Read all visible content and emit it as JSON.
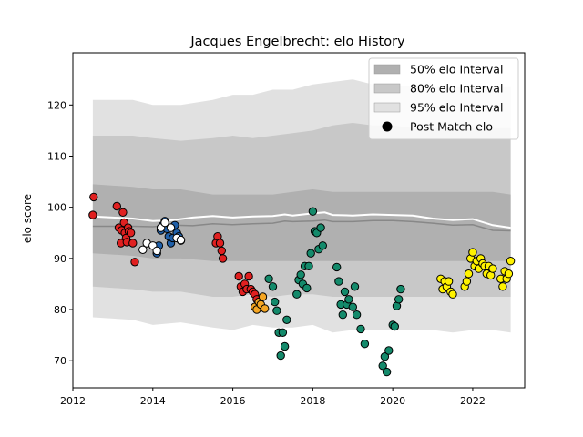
{
  "chart_data": {
    "type": "scatter",
    "title": "Jacques Engelbrecht: elo History",
    "xlabel": "",
    "ylabel": "elo score",
    "xlim": [
      2012.0,
      2023.3
    ],
    "ylim": [
      64.7,
      130.2
    ],
    "x_ticks": [
      2012,
      2014,
      2016,
      2018,
      2020,
      2022
    ],
    "x_tick_labels": [
      "2012",
      "2014",
      "2016",
      "2018",
      "2020",
      "2022"
    ],
    "y_ticks": [
      70,
      80,
      90,
      100,
      110,
      120
    ],
    "y_tick_labels": [
      "70",
      "80",
      "90",
      "100",
      "110",
      "120"
    ],
    "grid": false,
    "legend_position": "top-right",
    "legend": [
      {
        "label": "50% elo Interval",
        "kind": "band",
        "color": "#b0b0b0"
      },
      {
        "label": "80% elo Interval",
        "kind": "band",
        "color": "#c8c8c8"
      },
      {
        "label": "95% elo Interval",
        "kind": "band",
        "color": "#e1e1e1"
      },
      {
        "label": "Post Match elo",
        "kind": "marker",
        "color": "#000000"
      }
    ],
    "bands": {
      "x": [
        2012.5,
        2013.5,
        2014.0,
        2014.7,
        2015.5,
        2016.0,
        2016.5,
        2017.0,
        2017.5,
        2018.0,
        2018.5,
        2019.0,
        2019.5,
        2020.0,
        2020.5,
        2021.0,
        2021.5,
        2022.0,
        2022.5,
        2022.95
      ],
      "lo95": [
        78.5,
        78.0,
        77.0,
        77.5,
        76.5,
        76.0,
        77.0,
        76.5,
        76.5,
        77.0,
        75.5,
        76.0,
        76.0,
        76.0,
        76.0,
        76.0,
        75.5,
        76.0,
        76.0,
        75.5
      ],
      "lo80": [
        84.5,
        84.0,
        83.5,
        83.5,
        82.5,
        82.5,
        83.0,
        82.5,
        83.0,
        83.0,
        82.5,
        82.5,
        82.5,
        82.5,
        82.5,
        82.5,
        82.5,
        82.5,
        82.5,
        82.5
      ],
      "lo50": [
        91.0,
        90.5,
        90.0,
        90.0,
        89.5,
        89.5,
        89.5,
        89.5,
        89.5,
        89.5,
        89.5,
        89.5,
        89.5,
        89.5,
        89.5,
        89.5,
        89.5,
        89.5,
        89.5,
        89.5
      ],
      "hi50": [
        104.5,
        104.0,
        103.5,
        103.5,
        102.5,
        102.5,
        102.5,
        102.5,
        103.0,
        103.5,
        103.0,
        103.0,
        103.0,
        103.0,
        103.0,
        103.0,
        103.0,
        103.0,
        103.0,
        102.5
      ],
      "hi80": [
        114.0,
        114.0,
        113.5,
        113.0,
        113.5,
        114.0,
        113.5,
        114.0,
        114.5,
        115.0,
        116.0,
        116.5,
        116.0,
        116.0,
        115.5,
        115.5,
        115.5,
        115.5,
        115.5,
        115.5
      ],
      "hi95": [
        121.0,
        121.0,
        120.0,
        120.0,
        121.0,
        122.0,
        122.0,
        123.0,
        123.0,
        124.0,
        124.5,
        125.0,
        124.0,
        124.0,
        123.5,
        123.5,
        123.5,
        123.5,
        123.5,
        123.5
      ]
    },
    "mean_line": {
      "color": "#ffffff",
      "x": [
        2012.5,
        2013.0,
        2013.5,
        2014.0,
        2014.5,
        2015.0,
        2015.5,
        2016.0,
        2016.5,
        2017.0,
        2017.3,
        2017.5,
        2018.0,
        2018.3,
        2018.5,
        2019.0,
        2019.5,
        2020.0,
        2020.5,
        2021.0,
        2021.5,
        2022.0,
        2022.5,
        2022.95
      ],
      "y": [
        98.2,
        98.0,
        97.8,
        97.3,
        97.5,
        98.0,
        98.3,
        98.0,
        98.2,
        98.3,
        98.6,
        98.4,
        98.8,
        99.0,
        98.5,
        98.4,
        98.6,
        98.5,
        98.4,
        97.8,
        97.5,
        97.7,
        96.5,
        96.0
      ]
    },
    "median_line": {
      "color": "#888888",
      "x": [
        2012.5,
        2013.0,
        2013.5,
        2014.0,
        2014.5,
        2015.0,
        2015.5,
        2016.0,
        2016.5,
        2017.0,
        2017.3,
        2017.5,
        2018.0,
        2018.3,
        2018.5,
        2019.0,
        2019.5,
        2020.0,
        2020.5,
        2021.0,
        2021.5,
        2022.0,
        2022.5,
        2022.95
      ],
      "y": [
        96.3,
        96.3,
        96.3,
        96.2,
        96.5,
        96.4,
        96.8,
        96.6,
        96.8,
        96.9,
        97.3,
        97.2,
        97.3,
        97.5,
        97.2,
        97.2,
        97.4,
        97.4,
        97.2,
        96.9,
        96.5,
        96.6,
        95.5,
        95.4
      ]
    },
    "series": [
      {
        "color": "#e02020",
        "x": [
          2012.5,
          2012.52,
          2013.1,
          2013.15,
          2013.2,
          2013.22,
          2013.25,
          2013.28,
          2013.3,
          2013.33,
          2013.35,
          2013.38,
          2013.4,
          2013.45,
          2013.5,
          2013.55,
          2015.58,
          2015.62,
          2015.68,
          2015.72,
          2015.75
        ],
        "y": [
          98.5,
          102.0,
          100.2,
          96.0,
          93.0,
          95.5,
          99.0,
          97.0,
          95.0,
          94.0,
          93.2,
          96.0,
          95.3,
          95.0,
          93.0,
          89.3,
          93.0,
          94.3,
          93.0,
          91.5,
          90.0
        ]
      },
      {
        "color": "#1f5fa8",
        "x": [
          2014.1,
          2014.15,
          2014.2,
          2014.25,
          2014.3,
          2014.35,
          2014.4,
          2014.45,
          2014.5,
          2014.55,
          2014.6,
          2014.65,
          2014.7
        ],
        "y": [
          91.0,
          92.5,
          95.5,
          96.5,
          97.3,
          95.8,
          94.3,
          93.0,
          94.0,
          96.5,
          95.0,
          94.3,
          93.5
        ]
      },
      {
        "color": "#ffffff",
        "x": [
          2013.75,
          2013.85,
          2014.0,
          2014.1,
          2014.2,
          2014.3,
          2014.45,
          2014.6,
          2014.7
        ],
        "y": [
          91.7,
          93.0,
          92.5,
          91.5,
          96.0,
          97.0,
          96.0,
          94.0,
          93.6
        ]
      },
      {
        "color": "#e02020",
        "x": [
          2016.15,
          2016.2,
          2016.25,
          2016.3,
          2016.35,
          2016.4,
          2016.45,
          2016.5,
          2016.55,
          2016.6
        ],
        "y": [
          86.5,
          84.5,
          83.5,
          85.0,
          84.0,
          86.5,
          84.0,
          83.5,
          83.0,
          82.0
        ]
      },
      {
        "color": "#f5a623",
        "x": [
          2016.55,
          2016.6,
          2016.65,
          2016.7,
          2016.75,
          2016.8
        ],
        "y": [
          80.5,
          80.0,
          81.5,
          81.0,
          82.5,
          80.2
        ]
      },
      {
        "color": "#148a6b",
        "x": [
          2016.9,
          2017.0,
          2017.05,
          2017.1,
          2017.15,
          2017.2,
          2017.25,
          2017.3,
          2017.35,
          2017.6,
          2017.65,
          2017.7,
          2017.75,
          2017.8,
          2017.85,
          2017.9,
          2017.95,
          2018.0,
          2018.05,
          2018.1,
          2018.15,
          2018.2,
          2018.25,
          2018.6,
          2018.65,
          2018.7,
          2018.75,
          2018.8,
          2018.85,
          2018.9,
          2019.0,
          2019.05,
          2019.1,
          2019.2,
          2019.3,
          2019.75,
          2019.8,
          2019.85,
          2019.9,
          2020.0,
          2020.05,
          2020.1,
          2020.15,
          2020.2
        ],
        "y": [
          86.0,
          84.5,
          81.5,
          79.8,
          75.5,
          71.0,
          75.5,
          72.8,
          78.0,
          83.0,
          85.8,
          86.8,
          85.0,
          88.5,
          84.2,
          88.5,
          91.0,
          99.2,
          95.3,
          95.0,
          91.8,
          96.0,
          92.5,
          88.3,
          85.5,
          81.0,
          79.0,
          83.5,
          81.0,
          82.0,
          80.5,
          84.5,
          79.0,
          76.2,
          73.3,
          69.0,
          70.8,
          67.8,
          72.0,
          77.0,
          76.7,
          80.7,
          82.0,
          84.0
        ]
      },
      {
        "color": "#fff200",
        "x": [
          2021.2,
          2021.25,
          2021.3,
          2021.35,
          2021.4,
          2021.45,
          2021.5,
          2021.8,
          2021.85,
          2021.9,
          2021.95,
          2022.0,
          2022.05,
          2022.1,
          2022.15,
          2022.2,
          2022.25,
          2022.3,
          2022.35,
          2022.4,
          2022.45,
          2022.5,
          2022.7,
          2022.75,
          2022.8,
          2022.85,
          2022.9,
          2022.95
        ],
        "y": [
          86.0,
          84.0,
          85.5,
          84.5,
          85.5,
          83.5,
          83.0,
          84.5,
          85.5,
          87.0,
          90.0,
          91.2,
          88.5,
          89.5,
          88.0,
          90.0,
          89.0,
          88.5,
          87.0,
          88.5,
          86.7,
          88.0,
          86.0,
          84.5,
          87.5,
          86.0,
          87.0,
          89.5
        ]
      }
    ]
  }
}
